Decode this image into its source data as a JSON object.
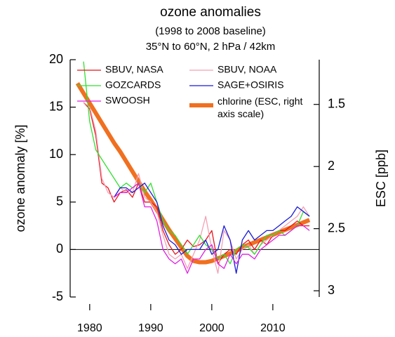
{
  "chart_data": {
    "type": "line",
    "title": "ozone anomalies",
    "subtitle": [
      "(1998 to 2008 baseline)",
      "35°N to 60°N, 2 hPa / 42km"
    ],
    "ylabel": "ozone anomaly [%]",
    "y2label": "ESC [ppb]",
    "x": [
      1978,
      1979,
      1980,
      1981,
      1982,
      1983,
      1984,
      1985,
      1986,
      1987,
      1988,
      1989,
      1990,
      1991,
      1992,
      1993,
      1994,
      1995,
      1996,
      1997,
      1998,
      1999,
      2000,
      2001,
      2002,
      2003,
      2004,
      2005,
      2006,
      2007,
      2008,
      2009,
      2010,
      2011,
      2012,
      2013,
      2014,
      2015,
      2016
    ],
    "xlim": [
      1976.8,
      2017.6
    ],
    "xticks": [
      1980,
      1990,
      2000,
      2010
    ],
    "ylim": [
      -5,
      20
    ],
    "yticks": [
      -5,
      0,
      5,
      10,
      15,
      20
    ],
    "y2lim": [
      1.14,
      3.05
    ],
    "y2_reversed": true,
    "y2ticks": [
      1.5,
      2,
      2.5,
      3
    ],
    "y2color": "#f07020",
    "reference_line": 0,
    "series": [
      {
        "name": "SBUV, NASA",
        "color": "#e8141c",
        "width": 1.3,
        "values": [
          null,
          15.5,
          14.8,
          12,
          7,
          6.5,
          5,
          6,
          6.3,
          5.5,
          7,
          5,
          5,
          4.5,
          2,
          0.5,
          -0.5,
          0,
          1,
          0.3,
          0.5,
          1,
          2,
          -1.5,
          -0.5,
          0,
          -0.5,
          0.5,
          1,
          0,
          1,
          0.5,
          1.5,
          2,
          2,
          2.5,
          3,
          2.5,
          2.5
        ]
      },
      {
        "name": "SBUV, NOAA",
        "color": "#f4a0b4",
        "width": 1.3,
        "values": [
          null,
          15.5,
          15,
          12.5,
          7.5,
          6,
          5.5,
          6.5,
          6,
          6,
          8,
          5.5,
          5,
          4,
          1.5,
          -0.5,
          -1,
          -0.5,
          -2,
          -0.5,
          1,
          3.5,
          0,
          -2.5,
          2,
          1,
          -1,
          0,
          0.5,
          -0.5,
          0.5,
          1,
          1.5,
          2,
          2.5,
          3,
          3.5,
          4.5,
          3.5
        ]
      },
      {
        "name": "GOZCARDS",
        "color": "#30e030",
        "width": 1.3,
        "values": [
          null,
          19.8,
          13.5,
          10.5,
          9.5,
          8.5,
          7.5,
          6.5,
          7,
          6.5,
          7,
          6,
          7,
          5,
          3,
          2,
          1.5,
          0.5,
          -0.5,
          0.5,
          1.5,
          0.5,
          0,
          -1,
          -0.5,
          -1.5,
          0,
          0.5,
          0.2,
          -0.5,
          0.5,
          1.5,
          1.5,
          2,
          1.5,
          2,
          2.5,
          4,
          3.5
        ]
      },
      {
        "name": "SAGE+OSIRIS",
        "color": "#1a1ad8",
        "width": 1.3,
        "values": [
          null,
          null,
          null,
          null,
          null,
          null,
          5.5,
          6.5,
          6.5,
          6,
          6.5,
          7,
          6,
          5,
          2.5,
          1,
          0.5,
          -0.5,
          0,
          0,
          0,
          1,
          -0.5,
          0,
          2.5,
          1,
          -2.5,
          1,
          2,
          1,
          1.5,
          2,
          2,
          2.5,
          3,
          3.5,
          4.5,
          4,
          3.5
        ]
      },
      {
        "name": "SWOOSH",
        "color": "#e020e0",
        "width": 1.3,
        "values": [
          null,
          null,
          null,
          null,
          null,
          null,
          5.5,
          6,
          6,
          6.5,
          7,
          4.5,
          4.5,
          3,
          0,
          -1,
          -1.5,
          -1,
          -2.5,
          -1,
          -1,
          0,
          0.5,
          -1.5,
          -2,
          -0.5,
          -1.5,
          -0.5,
          -0.5,
          -1,
          0,
          0.5,
          1,
          1.5,
          1.5,
          2,
          2.5,
          2.5,
          2
        ]
      },
      {
        "name": "chlorine (ESC, right axis scale)",
        "color": "#f07020",
        "width": 6,
        "axis": "y2",
        "values": [
          1.33,
          1.41,
          1.49,
          1.57,
          1.65,
          1.73,
          1.81,
          1.88,
          1.96,
          2.04,
          2.12,
          2.2,
          2.27,
          2.35,
          2.43,
          2.51,
          2.58,
          2.65,
          2.72,
          2.76,
          2.77,
          2.77,
          2.76,
          2.74,
          2.72,
          2.7,
          2.68,
          2.65,
          2.63,
          2.61,
          2.59,
          2.57,
          2.55,
          2.53,
          2.51,
          2.49,
          2.47,
          2.45,
          2.43
        ]
      }
    ]
  }
}
